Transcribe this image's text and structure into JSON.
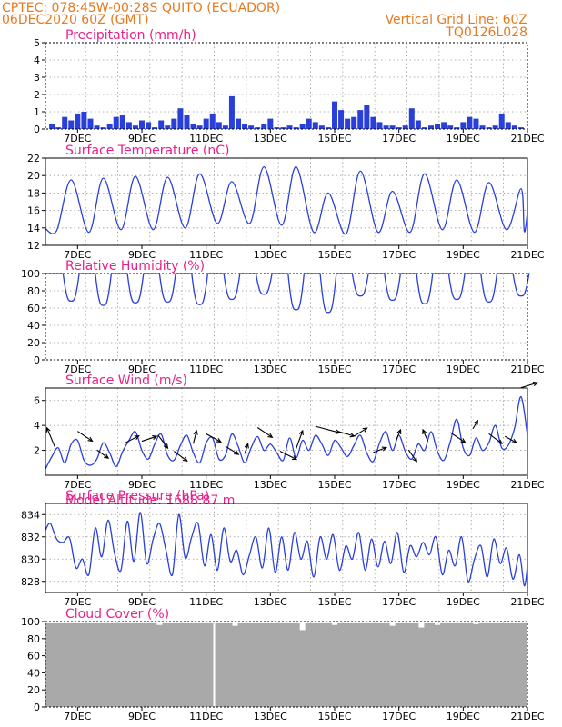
{
  "header": {
    "line1_left": "CPTEC:   078:45W-00:28S  QUITO (ECUADOR)",
    "line2_left": "06DEC2020 60Z (GMT)",
    "line2_right": "Vertical Grid Line: 60Z",
    "line3_right": "TQ0126L028"
  },
  "colors": {
    "header": "#e87a1e",
    "titles": "#e8208a",
    "series": "#2a3fd8",
    "precip_bars": "#2a3fd8",
    "cloud_fill": "#a9a9a9",
    "wind_arrows": "#000000"
  },
  "chart_data": [
    {
      "type": "bar",
      "title": "Precipitation (mm/h)",
      "x_ticks": [
        "7DEC",
        "9DEC",
        "11DEC",
        "13DEC",
        "15DEC",
        "17DEC",
        "19DEC",
        "21DEC"
      ],
      "ylim": [
        0,
        5
      ],
      "y_ticks": [
        0,
        1,
        2,
        3,
        4,
        5
      ],
      "grid": true,
      "x": [
        6.2,
        6.4,
        6.6,
        6.8,
        7.0,
        7.2,
        7.4,
        7.6,
        7.8,
        8.0,
        8.2,
        8.4,
        8.6,
        8.8,
        9.0,
        9.2,
        9.4,
        9.6,
        9.8,
        10.0,
        10.2,
        10.4,
        10.6,
        10.8,
        11.0,
        11.2,
        11.4,
        11.6,
        11.8,
        12.0,
        12.2,
        12.4,
        12.6,
        12.8,
        13.0,
        13.2,
        13.4,
        13.6,
        13.8,
        14.0,
        14.2,
        14.4,
        14.6,
        14.8,
        15.0,
        15.2,
        15.4,
        15.6,
        15.8,
        16.0,
        16.2,
        16.4,
        16.6,
        16.8,
        17.0,
        17.2,
        17.4,
        17.6,
        17.8,
        18.0,
        18.2,
        18.4,
        18.6,
        18.8,
        19.0,
        19.2,
        19.4,
        19.6,
        19.8,
        20.0,
        20.2,
        20.4,
        20.6,
        20.8
      ],
      "values": [
        0.3,
        0.1,
        0.7,
        0.5,
        0.9,
        1.0,
        0.6,
        0.2,
        0.1,
        0.3,
        0.7,
        0.8,
        0.4,
        0.2,
        0.5,
        0.4,
        0.1,
        0.5,
        0.2,
        0.6,
        1.2,
        0.8,
        0.3,
        0.2,
        0.6,
        0.9,
        0.4,
        0.2,
        1.9,
        0.6,
        0.3,
        0.2,
        0.1,
        0.3,
        0.6,
        0.1,
        0.1,
        0.2,
        0.1,
        0.3,
        0.6,
        0.4,
        0.2,
        0.1,
        1.6,
        1.1,
        0.6,
        0.7,
        1.1,
        1.4,
        0.7,
        0.4,
        0.2,
        0.2,
        0.1,
        0.2,
        1.2,
        0.5,
        0.1,
        0.2,
        0.3,
        0.4,
        0.2,
        0.1,
        0.4,
        0.7,
        0.6,
        0.2,
        0.1,
        0.2,
        0.9,
        0.4,
        0.2,
        0.1
      ]
    },
    {
      "type": "line",
      "title": "Surface Temperature (nC)",
      "x_ticks": [
        "7DEC",
        "9DEC",
        "11DEC",
        "13DEC",
        "15DEC",
        "17DEC",
        "19DEC",
        "21DEC"
      ],
      "ylim": [
        12,
        22
      ],
      "y_ticks": [
        12,
        14,
        16,
        18,
        20,
        22
      ],
      "grid": true,
      "max_days": [
        6.8,
        7.8,
        8.8,
        9.8,
        10.8,
        11.8,
        12.8,
        13.8,
        14.8,
        15.8,
        16.8,
        17.8,
        18.8,
        19.8,
        20.8
      ],
      "max_values": [
        19.5,
        19.7,
        19.9,
        19.8,
        20.2,
        19.3,
        21.0,
        21.0,
        18.0,
        20.5,
        18.2,
        20.2,
        19.5,
        19.2,
        18.5
      ],
      "min_values": [
        13.7,
        13.5,
        13.8,
        13.8,
        14.0,
        14.5,
        14.5,
        14.3,
        13.5,
        13.3,
        13.5,
        13.5,
        13.8,
        13.5,
        13.8,
        13.6
      ],
      "start_value": 13.9,
      "end_value": 15.8
    },
    {
      "type": "line",
      "title": "Relative Humidity (%)",
      "x_ticks": [
        "7DEC",
        "9DEC",
        "11DEC",
        "13DEC",
        "15DEC",
        "17DEC",
        "19DEC",
        "21DEC"
      ],
      "ylim": [
        0,
        100
      ],
      "y_ticks": [
        0,
        20,
        40,
        60,
        80,
        100
      ],
      "grid": true,
      "min_days": [
        6.8,
        7.8,
        8.8,
        9.8,
        10.8,
        11.8,
        12.8,
        13.8,
        14.8,
        15.8,
        16.8,
        17.8,
        18.8,
        19.8,
        20.8
      ],
      "min_values": [
        68,
        63,
        66,
        67,
        64,
        70,
        76,
        58,
        55,
        74,
        69,
        65,
        70,
        67,
        74
      ],
      "saturation": 100
    },
    {
      "type": "line",
      "title": "Surface Wind (m/s)",
      "x_ticks": [
        "7DEC",
        "9DEC",
        "11DEC",
        "13DEC",
        "15DEC",
        "17DEC",
        "19DEC",
        "21DEC"
      ],
      "ylim": [
        0,
        7
      ],
      "y_ticks": [
        2,
        4,
        6
      ],
      "grid": true,
      "speed_x": [
        6.0,
        6.2,
        6.4,
        6.6,
        6.8,
        7.0,
        7.2,
        7.4,
        7.6,
        7.8,
        8.0,
        8.2,
        8.4,
        8.6,
        8.8,
        9.0,
        9.2,
        9.4,
        9.6,
        9.8,
        10.0,
        10.2,
        10.4,
        10.6,
        10.8,
        11.0,
        11.2,
        11.4,
        11.6,
        11.8,
        12.0,
        12.2,
        12.4,
        12.6,
        12.8,
        13.0,
        13.2,
        13.4,
        13.6,
        13.8,
        14.0,
        14.2,
        14.4,
        14.6,
        14.8,
        15.0,
        15.2,
        15.4,
        15.6,
        15.8,
        16.0,
        16.2,
        16.4,
        16.6,
        16.8,
        17.0,
        17.2,
        17.4,
        17.6,
        17.8,
        18.0,
        18.2,
        18.4,
        18.6,
        18.8,
        19.0,
        19.2,
        19.4,
        19.6,
        19.8,
        20.0,
        20.2,
        20.4,
        20.6,
        20.8,
        21.0
      ],
      "speed": [
        0.5,
        1.5,
        2.2,
        1.0,
        2.5,
        2.8,
        1.2,
        0.8,
        1.3,
        2.6,
        1.8,
        0.7,
        1.9,
        2.8,
        3.5,
        2.0,
        1.3,
        2.5,
        3.3,
        1.6,
        1.2,
        2.4,
        3.2,
        1.8,
        1.0,
        2.6,
        3.0,
        1.3,
        1.6,
        3.3,
        2.3,
        1.0,
        2.2,
        3.1,
        2.0,
        2.5,
        1.8,
        1.2,
        3.0,
        1.4,
        2.8,
        2.0,
        3.2,
        2.5,
        1.6,
        2.8,
        2.2,
        1.5,
        2.4,
        3.2,
        1.8,
        1.1,
        2.6,
        3.5,
        2.0,
        3.2,
        1.9,
        1.3,
        2.5,
        2.0,
        3.5,
        1.9,
        1.2,
        2.7,
        4.5,
        2.2,
        1.6,
        3.0,
        2.0,
        2.6,
        4.0,
        2.2,
        2.4,
        3.8,
        6.3,
        3.2
      ],
      "arrows": [
        {
          "day": 6.3,
          "u": -0.5,
          "v": 1.2
        },
        {
          "day": 7.0,
          "u": 0.9,
          "v": -0.6
        },
        {
          "day": 7.6,
          "u": 0.7,
          "v": -0.5
        },
        {
          "day": 8.5,
          "u": 0.8,
          "v": 0.4
        },
        {
          "day": 9.0,
          "u": 0.9,
          "v": 0.3
        },
        {
          "day": 9.5,
          "u": 0.6,
          "v": -0.8
        },
        {
          "day": 10.0,
          "u": 0.8,
          "v": -0.6
        },
        {
          "day": 10.6,
          "u": 0.2,
          "v": 0.8
        },
        {
          "day": 11.0,
          "u": 0.9,
          "v": -0.5
        },
        {
          "day": 11.6,
          "u": 0.8,
          "v": -0.5
        },
        {
          "day": 12.2,
          "u": 0.2,
          "v": 0.6
        },
        {
          "day": 12.6,
          "u": 0.9,
          "v": -0.6
        },
        {
          "day": 13.3,
          "u": 1.0,
          "v": -0.5
        },
        {
          "day": 13.8,
          "u": 0.4,
          "v": 1.1
        },
        {
          "day": 14.4,
          "u": 1.5,
          "v": -0.4
        },
        {
          "day": 15.1,
          "u": 1.0,
          "v": -0.3
        },
        {
          "day": 15.6,
          "u": 0.8,
          "v": 0.5
        },
        {
          "day": 16.2,
          "u": 0.8,
          "v": 0.3
        },
        {
          "day": 16.9,
          "u": 0.3,
          "v": 0.7
        },
        {
          "day": 17.3,
          "u": 0.5,
          "v": -0.7
        },
        {
          "day": 17.9,
          "u": -0.3,
          "v": 0.7
        },
        {
          "day": 18.6,
          "u": 0.9,
          "v": -0.6
        },
        {
          "day": 19.3,
          "u": 0.3,
          "v": 0.5
        },
        {
          "day": 19.8,
          "u": 0.8,
          "v": -0.6
        },
        {
          "day": 20.3,
          "u": 0.7,
          "v": -0.4
        },
        {
          "day": 20.8,
          "u": 1.0,
          "v": 0.3
        }
      ]
    },
    {
      "type": "line",
      "title": "Surface Pressure (hPa)",
      "annotation": "Model Altitude: 1688.87 m",
      "x_ticks": [
        "7DEC",
        "9DEC",
        "11DEC",
        "13DEC",
        "15DEC",
        "17DEC",
        "19DEC",
        "21DEC"
      ],
      "ylim": [
        827,
        835
      ],
      "y_ticks": [
        828,
        830,
        832,
        834
      ],
      "grid": true,
      "extrema_x": [
        6.0,
        6.15,
        6.35,
        6.55,
        6.75,
        6.95,
        7.15,
        7.35,
        7.55,
        7.75,
        7.95,
        8.15,
        8.35,
        8.55,
        8.75,
        8.95,
        9.15,
        9.35,
        9.55,
        9.75,
        9.95,
        10.15,
        10.35,
        10.55,
        10.75,
        10.95,
        11.15,
        11.35,
        11.55,
        11.75,
        11.95,
        12.15,
        12.35,
        12.55,
        12.75,
        12.95,
        13.15,
        13.35,
        13.55,
        13.75,
        13.95,
        14.15,
        14.35,
        14.55,
        14.75,
        14.95,
        15.15,
        15.35,
        15.55,
        15.75,
        15.95,
        16.15,
        16.35,
        16.55,
        16.75,
        16.95,
        17.15,
        17.35,
        17.55,
        17.75,
        17.95,
        18.15,
        18.35,
        18.55,
        18.75,
        18.95,
        19.15,
        19.35,
        19.55,
        19.75,
        19.95,
        20.15,
        20.35,
        20.55,
        20.75,
        20.9,
        21.0
      ],
      "extrema_y": [
        832.6,
        833.2,
        831.8,
        831.5,
        831.9,
        829.2,
        830.0,
        828.6,
        832.8,
        830.2,
        833.5,
        830.5,
        829.0,
        833.4,
        829.8,
        834.2,
        829.6,
        831.8,
        833.2,
        830.8,
        828.6,
        834.0,
        830.1,
        832.0,
        833.2,
        829.4,
        832.2,
        829.0,
        832.8,
        829.8,
        830.8,
        828.6,
        830.4,
        832.0,
        829.2,
        832.8,
        828.8,
        832.0,
        829.0,
        832.4,
        830.0,
        831.6,
        828.4,
        832.0,
        830.0,
        832.2,
        829.0,
        831.2,
        830.0,
        832.4,
        829.0,
        831.8,
        829.3,
        831.6,
        829.6,
        832.4,
        828.8,
        831.2,
        830.2,
        831.5,
        830.4,
        832.0,
        828.6,
        830.8,
        829.4,
        832.0,
        828.0,
        830.0,
        831.2,
        828.4,
        831.8,
        829.6,
        831.0,
        828.2,
        830.4,
        827.6,
        829.4
      ]
    },
    {
      "type": "area",
      "title": "Cloud Cover (%)",
      "x_ticks": [
        "7DEC",
        "9DEC",
        "11DEC",
        "13DEC",
        "15DEC",
        "17DEC",
        "19DEC",
        "21DEC"
      ],
      "ylim": [
        0,
        100
      ],
      "y_ticks": [
        0,
        20,
        40,
        60,
        80,
        100
      ],
      "grid": true,
      "baseline": 98,
      "dips": [
        {
          "day": 11.25,
          "value": 0
        },
        {
          "day": 9.55,
          "value": 96
        },
        {
          "day": 11.9,
          "value": 95
        },
        {
          "day": 14.0,
          "value": 90
        },
        {
          "day": 15.0,
          "value": 96
        },
        {
          "day": 16.8,
          "value": 95
        },
        {
          "day": 17.7,
          "value": 93
        },
        {
          "day": 18.2,
          "value": 96
        },
        {
          "day": 19.4,
          "value": 97
        }
      ]
    }
  ]
}
